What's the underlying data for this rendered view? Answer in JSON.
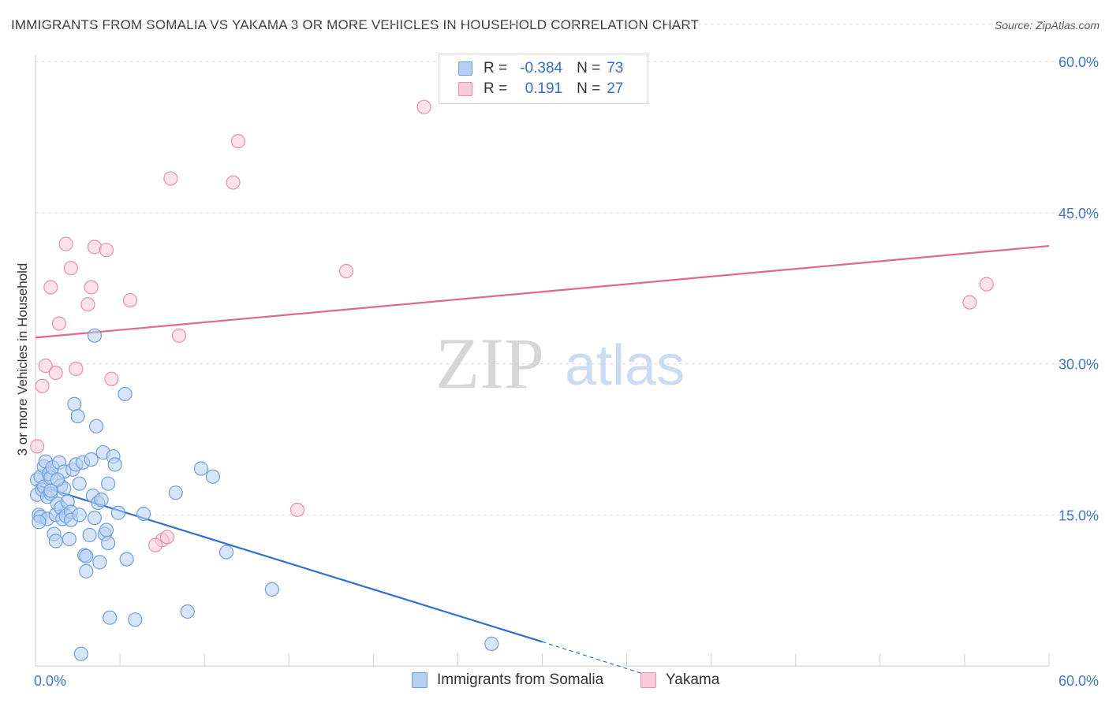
{
  "title": "IMMIGRANTS FROM SOMALIA VS YAKAMA 3 OR MORE VEHICLES IN HOUSEHOLD CORRELATION CHART",
  "source": "Source: ZipAtlas.com",
  "watermark": {
    "part1": "ZIP",
    "part2": "atlas"
  },
  "legend": {
    "rows": [
      {
        "r_label": "R =",
        "r_value": "-0.384",
        "n_label": "N =",
        "n_value": "73"
      },
      {
        "r_label": "R =",
        "r_value": "0.191",
        "n_label": "N =",
        "n_value": "27"
      }
    ]
  },
  "colors": {
    "blue_fill": "#b7d0f2",
    "blue_stroke": "#6d9fe0",
    "blue_line": "#2f6fd1",
    "pink_fill": "#f9cad9",
    "pink_stroke": "#ea8fac",
    "pink_line": "#e06890",
    "axis_label": "#3a78d4",
    "grid": "#dcdcdc"
  },
  "chart_data": {
    "type": "scatter",
    "title": "IMMIGRANTS FROM SOMALIA VS YAKAMA 3 OR MORE VEHICLES IN HOUSEHOLD CORRELATION CHART",
    "xlabel": "",
    "ylabel": "3 or more Vehicles in Household",
    "xlim": [
      0,
      60
    ],
    "ylim": [
      0,
      63
    ],
    "x_tick_labels": [
      {
        "value": 0,
        "label": "0.0%"
      },
      {
        "value": 60,
        "label": "60.0%"
      }
    ],
    "y_tick_labels": [
      {
        "value": 15,
        "label": "15.0%"
      },
      {
        "value": 30,
        "label": "30.0%"
      },
      {
        "value": 45,
        "label": "45.0%"
      },
      {
        "value": 60,
        "label": "60.0%"
      }
    ],
    "grid": true,
    "legend_position": "bottom",
    "series": [
      {
        "name": "Immigrants from Somalia",
        "color": "#6d9fe0",
        "points": [
          [
            0.1,
            18.5
          ],
          [
            0.1,
            17.0
          ],
          [
            0.2,
            15.0
          ],
          [
            0.3,
            18.8
          ],
          [
            0.3,
            14.8
          ],
          [
            0.4,
            17.5
          ],
          [
            0.5,
            19.8
          ],
          [
            0.5,
            17.8
          ],
          [
            0.6,
            20.3
          ],
          [
            0.7,
            14.6
          ],
          [
            0.7,
            16.8
          ],
          [
            0.8,
            19.1
          ],
          [
            0.9,
            18.7
          ],
          [
            0.9,
            17.1
          ],
          [
            1.0,
            19.7
          ],
          [
            1.1,
            13.1
          ],
          [
            1.2,
            15.0
          ],
          [
            1.2,
            12.4
          ],
          [
            1.3,
            16.1
          ],
          [
            1.4,
            20.2
          ],
          [
            1.5,
            17.9
          ],
          [
            1.5,
            15.7
          ],
          [
            1.6,
            14.6
          ],
          [
            1.7,
            17.6
          ],
          [
            1.7,
            19.3
          ],
          [
            1.8,
            14.9
          ],
          [
            1.9,
            16.3
          ],
          [
            2.0,
            12.6
          ],
          [
            2.1,
            15.3
          ],
          [
            2.1,
            14.5
          ],
          [
            2.2,
            19.5
          ],
          [
            2.3,
            26.0
          ],
          [
            2.4,
            20.0
          ],
          [
            2.5,
            24.8
          ],
          [
            2.6,
            18.1
          ],
          [
            2.8,
            20.2
          ],
          [
            2.9,
            11.0
          ],
          [
            3.0,
            9.4
          ],
          [
            3.0,
            10.9
          ],
          [
            3.2,
            13.0
          ],
          [
            3.3,
            20.5
          ],
          [
            3.4,
            16.9
          ],
          [
            3.5,
            14.7
          ],
          [
            3.5,
            32.8
          ],
          [
            3.6,
            23.8
          ],
          [
            3.7,
            16.2
          ],
          [
            3.8,
            10.3
          ],
          [
            3.9,
            16.5
          ],
          [
            4.0,
            21.2
          ],
          [
            4.1,
            13.1
          ],
          [
            4.2,
            13.5
          ],
          [
            4.3,
            12.2
          ],
          [
            4.3,
            18.1
          ],
          [
            4.4,
            4.8
          ],
          [
            4.6,
            20.8
          ],
          [
            4.7,
            20.0
          ],
          [
            4.9,
            15.2
          ],
          [
            5.3,
            27.0
          ],
          [
            5.4,
            10.6
          ],
          [
            5.9,
            4.6
          ],
          [
            6.4,
            15.1
          ],
          [
            8.3,
            17.2
          ],
          [
            9.0,
            5.4
          ],
          [
            9.8,
            19.6
          ],
          [
            10.5,
            18.8
          ],
          [
            11.3,
            11.3
          ],
          [
            14.0,
            7.6
          ],
          [
            2.7,
            1.2
          ],
          [
            27.0,
            2.2
          ],
          [
            0.2,
            14.3
          ],
          [
            0.9,
            17.4
          ],
          [
            1.3,
            18.5
          ],
          [
            2.6,
            15.0
          ]
        ]
      },
      {
        "name": "Yakama",
        "color": "#ea8fac",
        "points": [
          [
            0.1,
            21.8
          ],
          [
            0.4,
            27.8
          ],
          [
            0.6,
            29.8
          ],
          [
            0.9,
            37.6
          ],
          [
            1.2,
            29.1
          ],
          [
            1.4,
            34.0
          ],
          [
            1.8,
            41.9
          ],
          [
            2.1,
            39.5
          ],
          [
            2.4,
            29.5
          ],
          [
            3.1,
            35.9
          ],
          [
            3.3,
            37.6
          ],
          [
            3.5,
            41.6
          ],
          [
            4.2,
            41.3
          ],
          [
            4.5,
            28.5
          ],
          [
            5.6,
            36.3
          ],
          [
            7.5,
            12.5
          ],
          [
            7.8,
            12.8
          ],
          [
            8.0,
            48.4
          ],
          [
            8.5,
            32.8
          ],
          [
            11.7,
            48.0
          ],
          [
            12.0,
            52.1
          ],
          [
            15.5,
            15.5
          ],
          [
            18.4,
            39.2
          ],
          [
            23.0,
            55.5
          ],
          [
            55.3,
            36.1
          ],
          [
            56.3,
            37.9
          ],
          [
            7.1,
            12.0
          ]
        ]
      }
    ],
    "trend_lines": [
      {
        "series": "Immigrants from Somalia",
        "x0": 0,
        "y0": 18.0,
        "x1": 30,
        "y1": 2.4,
        "dashed_to": {
          "x": 36,
          "y": -0.8
        }
      },
      {
        "series": "Yakama",
        "x0": 0,
        "y0": 32.6,
        "x1": 60,
        "y1": 41.7
      }
    ]
  }
}
